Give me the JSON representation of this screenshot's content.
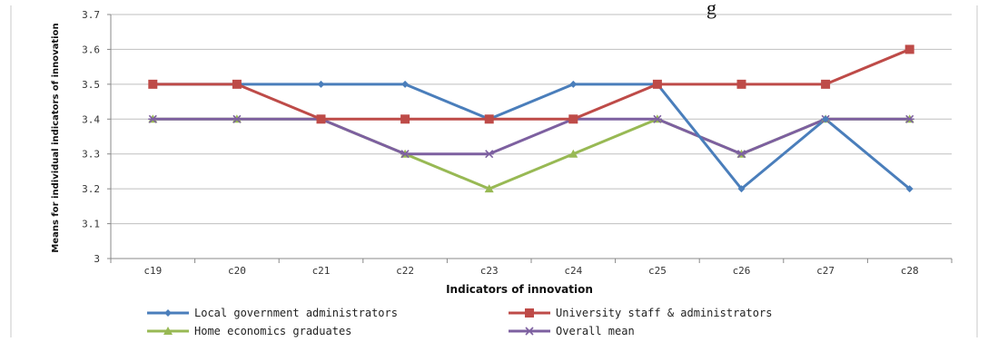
{
  "chart_data": {
    "type": "line",
    "title": "g",
    "xlabel": "Indicators of innovation",
    "ylabel": "Means for individual indicators of innovation",
    "ylim": [
      3.0,
      3.7
    ],
    "yticks": [
      "3",
      "3.1",
      "3.2",
      "3.3",
      "3.4",
      "3.5",
      "3.6",
      "3.7"
    ],
    "categories": [
      "c19",
      "c20",
      "c21",
      "c22",
      "c23",
      "c24",
      "c25",
      "c26",
      "c27",
      "c28"
    ],
    "grid": true,
    "legend_position": "bottom",
    "series": [
      {
        "name": "Local government administrators",
        "color": "#4a7ebb",
        "marker": "diamond",
        "values": [
          3.5,
          3.5,
          3.5,
          3.5,
          3.4,
          3.5,
          3.5,
          3.2,
          3.4,
          3.2
        ]
      },
      {
        "name": "University staff & administrators",
        "color": "#be4b48",
        "marker": "square",
        "values": [
          3.5,
          3.5,
          3.4,
          3.4,
          3.4,
          3.4,
          3.5,
          3.5,
          3.5,
          3.6
        ]
      },
      {
        "name": "Home economics graduates",
        "color": "#98b954",
        "marker": "triangle",
        "values": [
          3.4,
          3.4,
          3.4,
          3.3,
          3.2,
          3.3,
          3.4,
          3.3,
          3.4,
          3.4
        ]
      },
      {
        "name": "Overall mean",
        "color": "#7d60a0",
        "marker": "cross",
        "values": [
          3.4,
          3.4,
          3.4,
          3.3,
          3.3,
          3.4,
          3.4,
          3.3,
          3.4,
          3.4
        ]
      }
    ]
  }
}
